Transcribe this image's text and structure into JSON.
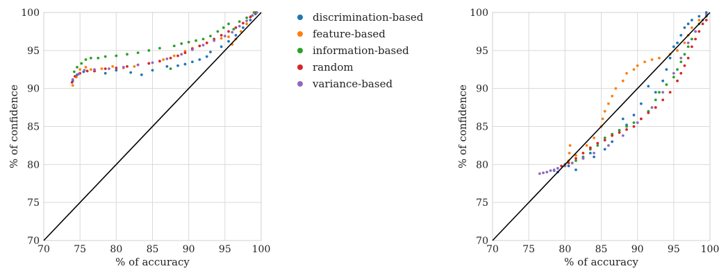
{
  "chart_data": [
    {
      "type": "scatter",
      "xlabel": "% of accuracy",
      "ylabel": "% of confidence",
      "xlim": [
        70,
        100
      ],
      "ylim": [
        70,
        100
      ],
      "xticks": [
        "70",
        "75",
        "80",
        "85",
        "90",
        "95",
        "100"
      ],
      "yticks": [
        "70",
        "75",
        "80",
        "85",
        "90",
        "95",
        "100"
      ],
      "grid": true,
      "reference_line": {
        "x": [
          70,
          100
        ],
        "y": [
          70,
          100
        ],
        "color": "#000000"
      },
      "series": [
        {
          "name": "discrimination-based",
          "color": "#1f77b4",
          "points": [
            [
              74.0,
              91.0
            ],
            [
              74.6,
              91.8
            ],
            [
              75.5,
              92.2
            ],
            [
              77.0,
              92.3
            ],
            [
              78.5,
              92.0
            ],
            [
              80.0,
              92.4
            ],
            [
              82.0,
              92.1
            ],
            [
              83.5,
              91.8
            ],
            [
              85.0,
              92.4
            ],
            [
              87.0,
              92.9
            ],
            [
              88.5,
              93.0
            ],
            [
              89.5,
              93.2
            ],
            [
              90.5,
              93.5
            ],
            [
              91.5,
              93.8
            ],
            [
              92.5,
              94.2
            ],
            [
              93.0,
              94.8
            ],
            [
              94.5,
              95.5
            ],
            [
              95.5,
              96.2
            ],
            [
              96.5,
              97.0
            ],
            [
              97.5,
              98.0
            ],
            [
              98.5,
              99.0
            ],
            [
              99.2,
              99.8
            ]
          ]
        },
        {
          "name": "feature-based",
          "color": "#ff7f0e",
          "points": [
            [
              74.0,
              90.4
            ],
            [
              74.5,
              91.5
            ],
            [
              75.0,
              92.5
            ],
            [
              75.8,
              92.8
            ],
            [
              76.5,
              92.5
            ],
            [
              78.0,
              92.6
            ],
            [
              79.5,
              92.9
            ],
            [
              81.0,
              92.7
            ],
            [
              82.5,
              92.9
            ],
            [
              84.5,
              93.3
            ],
            [
              86.5,
              93.8
            ],
            [
              88.0,
              94.3
            ],
            [
              89.5,
              94.9
            ],
            [
              90.5,
              95.3
            ],
            [
              91.5,
              95.6
            ],
            [
              92.5,
              96.0
            ],
            [
              93.5,
              96.5
            ],
            [
              94.5,
              96.6
            ],
            [
              95.5,
              96.8
            ],
            [
              96.0,
              95.8
            ],
            [
              96.5,
              96.5
            ],
            [
              97.2,
              97.5
            ],
            [
              98.0,
              98.5
            ],
            [
              98.6,
              99.5
            ],
            [
              99.2,
              100.0
            ]
          ]
        },
        {
          "name": "information-based",
          "color": "#2ca02c",
          "points": [
            [
              74.2,
              92.2
            ],
            [
              74.6,
              92.8
            ],
            [
              75.2,
              93.3
            ],
            [
              75.8,
              93.8
            ],
            [
              76.5,
              94.0
            ],
            [
              77.5,
              94.0
            ],
            [
              78.5,
              94.2
            ],
            [
              80.0,
              94.3
            ],
            [
              81.5,
              94.5
            ],
            [
              83.0,
              94.7
            ],
            [
              84.5,
              95.0
            ],
            [
              86.0,
              95.3
            ],
            [
              87.5,
              92.6
            ],
            [
              88.0,
              95.6
            ],
            [
              89.0,
              95.9
            ],
            [
              90.0,
              96.1
            ],
            [
              91.0,
              96.3
            ],
            [
              92.0,
              96.5
            ],
            [
              93.0,
              96.9
            ],
            [
              94.0,
              97.5
            ],
            [
              94.8,
              98.0
            ],
            [
              95.5,
              98.5
            ],
            [
              96.2,
              97.8
            ],
            [
              97.0,
              98.8
            ],
            [
              98.0,
              99.3
            ],
            [
              99.0,
              100.0
            ]
          ]
        },
        {
          "name": "random",
          "color": "#d62728",
          "points": [
            [
              73.9,
              90.8
            ],
            [
              74.3,
              91.6
            ],
            [
              75.0,
              92.0
            ],
            [
              76.0,
              92.3
            ],
            [
              77.0,
              92.3
            ],
            [
              78.5,
              92.6
            ],
            [
              80.0,
              92.7
            ],
            [
              81.5,
              92.9
            ],
            [
              83.0,
              93.1
            ],
            [
              84.5,
              93.3
            ],
            [
              86.0,
              93.6
            ],
            [
              87.5,
              94.0
            ],
            [
              88.5,
              94.3
            ],
            [
              89.5,
              94.7
            ],
            [
              90.5,
              95.2
            ],
            [
              91.5,
              95.6
            ],
            [
              92.5,
              96.0
            ],
            [
              93.5,
              96.5
            ],
            [
              94.5,
              97.0
            ],
            [
              95.5,
              97.5
            ],
            [
              96.5,
              98.0
            ],
            [
              97.5,
              98.6
            ],
            [
              98.5,
              99.4
            ],
            [
              99.3,
              100.0
            ]
          ]
        },
        {
          "name": "variance-based",
          "color": "#9467bd",
          "points": [
            [
              74.0,
              91.2
            ],
            [
              74.8,
              91.9
            ],
            [
              75.6,
              92.4
            ],
            [
              77.0,
              92.5
            ],
            [
              79.0,
              92.6
            ],
            [
              81.0,
              92.8
            ],
            [
              83.0,
              93.1
            ],
            [
              85.0,
              93.4
            ],
            [
              87.0,
              93.9
            ],
            [
              89.0,
              94.5
            ],
            [
              90.5,
              95.1
            ],
            [
              92.0,
              95.7
            ],
            [
              93.5,
              96.3
            ],
            [
              95.0,
              96.9
            ],
            [
              96.0,
              97.4
            ],
            [
              97.0,
              98.2
            ],
            [
              98.0,
              98.9
            ],
            [
              98.8,
              99.6
            ],
            [
              99.4,
              100.0
            ]
          ]
        }
      ]
    },
    {
      "type": "scatter",
      "xlabel": "% of accuracy",
      "ylabel": "% of confidence",
      "xlim": [
        70,
        100
      ],
      "ylim": [
        70,
        100
      ],
      "xticks": [
        "70",
        "75",
        "80",
        "85",
        "90",
        "95",
        "100"
      ],
      "yticks": [
        "70",
        "75",
        "80",
        "85",
        "90",
        "95",
        "100"
      ],
      "grid": true,
      "reference_line": {
        "x": [
          70,
          100
        ],
        "y": [
          70,
          100
        ],
        "color": "#000000"
      },
      "series": [
        {
          "name": "discrimination-based",
          "color": "#1f77b4",
          "points": [
            [
              78.5,
              79.2
            ],
            [
              79.0,
              79.0
            ],
            [
              80.5,
              79.8
            ],
            [
              81.5,
              79.3
            ],
            [
              82.5,
              80.8
            ],
            [
              83.5,
              81.5
            ],
            [
              84.0,
              81.0
            ],
            [
              85.5,
              82.0
            ],
            [
              86.5,
              83.0
            ],
            [
              87.5,
              84.5
            ],
            [
              88.0,
              86.0
            ],
            [
              88.5,
              85.2
            ],
            [
              89.5,
              86.5
            ],
            [
              90.5,
              88.0
            ],
            [
              91.5,
              90.3
            ],
            [
              92.5,
              89.5
            ],
            [
              93.5,
              91.0
            ],
            [
              94.0,
              92.5
            ],
            [
              94.5,
              94.0
            ],
            [
              95.0,
              95.5
            ],
            [
              95.5,
              96.0
            ],
            [
              96.0,
              97.0
            ],
            [
              96.5,
              98.0
            ],
            [
              97.0,
              98.5
            ],
            [
              97.5,
              99.0
            ],
            [
              98.5,
              99.5
            ],
            [
              99.5,
              100.0
            ]
          ]
        },
        {
          "name": "feature-based",
          "color": "#ff7f0e",
          "points": [
            [
              80.5,
              80.5
            ],
            [
              80.6,
              81.5
            ],
            [
              80.7,
              82.5
            ],
            [
              81.5,
              81.2
            ],
            [
              83.0,
              82.5
            ],
            [
              84.0,
              83.5
            ],
            [
              85.0,
              85.0
            ],
            [
              85.2,
              86.0
            ],
            [
              85.5,
              87.0
            ],
            [
              86.0,
              88.0
            ],
            [
              86.5,
              89.0
            ],
            [
              87.0,
              90.0
            ],
            [
              88.0,
              91.0
            ],
            [
              88.5,
              92.0
            ],
            [
              89.5,
              92.5
            ],
            [
              90.0,
              93.0
            ],
            [
              91.0,
              93.5
            ],
            [
              92.0,
              93.8
            ],
            [
              93.0,
              94.0
            ],
            [
              94.5,
              94.5
            ],
            [
              95.5,
              95.0
            ],
            [
              96.5,
              96.0
            ],
            [
              97.0,
              97.0
            ],
            [
              97.5,
              98.0
            ],
            [
              98.5,
              99.0
            ],
            [
              99.5,
              99.5
            ]
          ]
        },
        {
          "name": "information-based",
          "color": "#2ca02c",
          "points": [
            [
              80.0,
              80.0
            ],
            [
              81.5,
              80.5
            ],
            [
              82.5,
              81.0
            ],
            [
              83.5,
              82.0
            ],
            [
              84.5,
              82.5
            ],
            [
              85.5,
              83.5
            ],
            [
              86.5,
              84.0
            ],
            [
              87.5,
              84.5
            ],
            [
              88.5,
              85.0
            ],
            [
              89.5,
              85.5
            ],
            [
              90.5,
              86.0
            ],
            [
              91.5,
              87.0
            ],
            [
              92.5,
              88.5
            ],
            [
              93.0,
              89.5
            ],
            [
              94.0,
              90.5
            ],
            [
              95.0,
              91.5
            ],
            [
              95.5,
              92.5
            ],
            [
              96.0,
              93.5
            ],
            [
              96.5,
              94.5
            ],
            [
              97.0,
              95.5
            ],
            [
              97.5,
              96.5
            ],
            [
              98.0,
              97.5
            ],
            [
              98.5,
              98.5
            ],
            [
              99.5,
              99.5
            ]
          ]
        },
        {
          "name": "random",
          "color": "#d62728",
          "points": [
            [
              79.5,
              79.8
            ],
            [
              80.5,
              80.2
            ],
            [
              81.5,
              80.8
            ],
            [
              82.5,
              81.5
            ],
            [
              83.5,
              82.2
            ],
            [
              84.5,
              82.8
            ],
            [
              85.5,
              83.2
            ],
            [
              86.5,
              83.8
            ],
            [
              87.5,
              84.2
            ],
            [
              88.5,
              84.6
            ],
            [
              89.5,
              85.0
            ],
            [
              90.5,
              86.0
            ],
            [
              91.5,
              86.8
            ],
            [
              92.5,
              87.5
            ],
            [
              93.5,
              88.5
            ],
            [
              94.5,
              89.5
            ],
            [
              95.5,
              91.0
            ],
            [
              96.0,
              92.0
            ],
            [
              96.5,
              93.0
            ],
            [
              97.0,
              94.0
            ],
            [
              97.5,
              95.5
            ],
            [
              98.0,
              96.5
            ],
            [
              98.5,
              97.5
            ],
            [
              99.0,
              98.5
            ],
            [
              99.5,
              99.0
            ]
          ]
        },
        {
          "name": "variance-based",
          "color": "#9467bd",
          "points": [
            [
              76.5,
              78.8
            ],
            [
              77.0,
              78.9
            ],
            [
              77.5,
              79.0
            ],
            [
              78.0,
              79.2
            ],
            [
              78.5,
              79.3
            ],
            [
              79.0,
              79.5
            ],
            [
              80.0,
              79.8
            ],
            [
              81.0,
              80.2
            ],
            [
              82.5,
              80.8
            ],
            [
              84.0,
              81.5
            ],
            [
              86.0,
              82.5
            ],
            [
              88.0,
              83.8
            ],
            [
              90.0,
              85.5
            ],
            [
              92.0,
              87.5
            ],
            [
              93.5,
              89.5
            ],
            [
              95.0,
              92.0
            ],
            [
              96.0,
              94.0
            ],
            [
              97.0,
              96.0
            ],
            [
              98.0,
              97.5
            ],
            [
              99.0,
              99.0
            ],
            [
              99.5,
              99.8
            ]
          ]
        }
      ]
    }
  ],
  "legend": {
    "placement": "center",
    "entries": [
      {
        "label": "discrimination-based",
        "color": "#1f77b4"
      },
      {
        "label": "feature-based",
        "color": "#ff7f0e"
      },
      {
        "label": "information-based",
        "color": "#2ca02c"
      },
      {
        "label": "random",
        "color": "#d62728"
      },
      {
        "label": "variance-based",
        "color": "#9467bd"
      }
    ]
  }
}
